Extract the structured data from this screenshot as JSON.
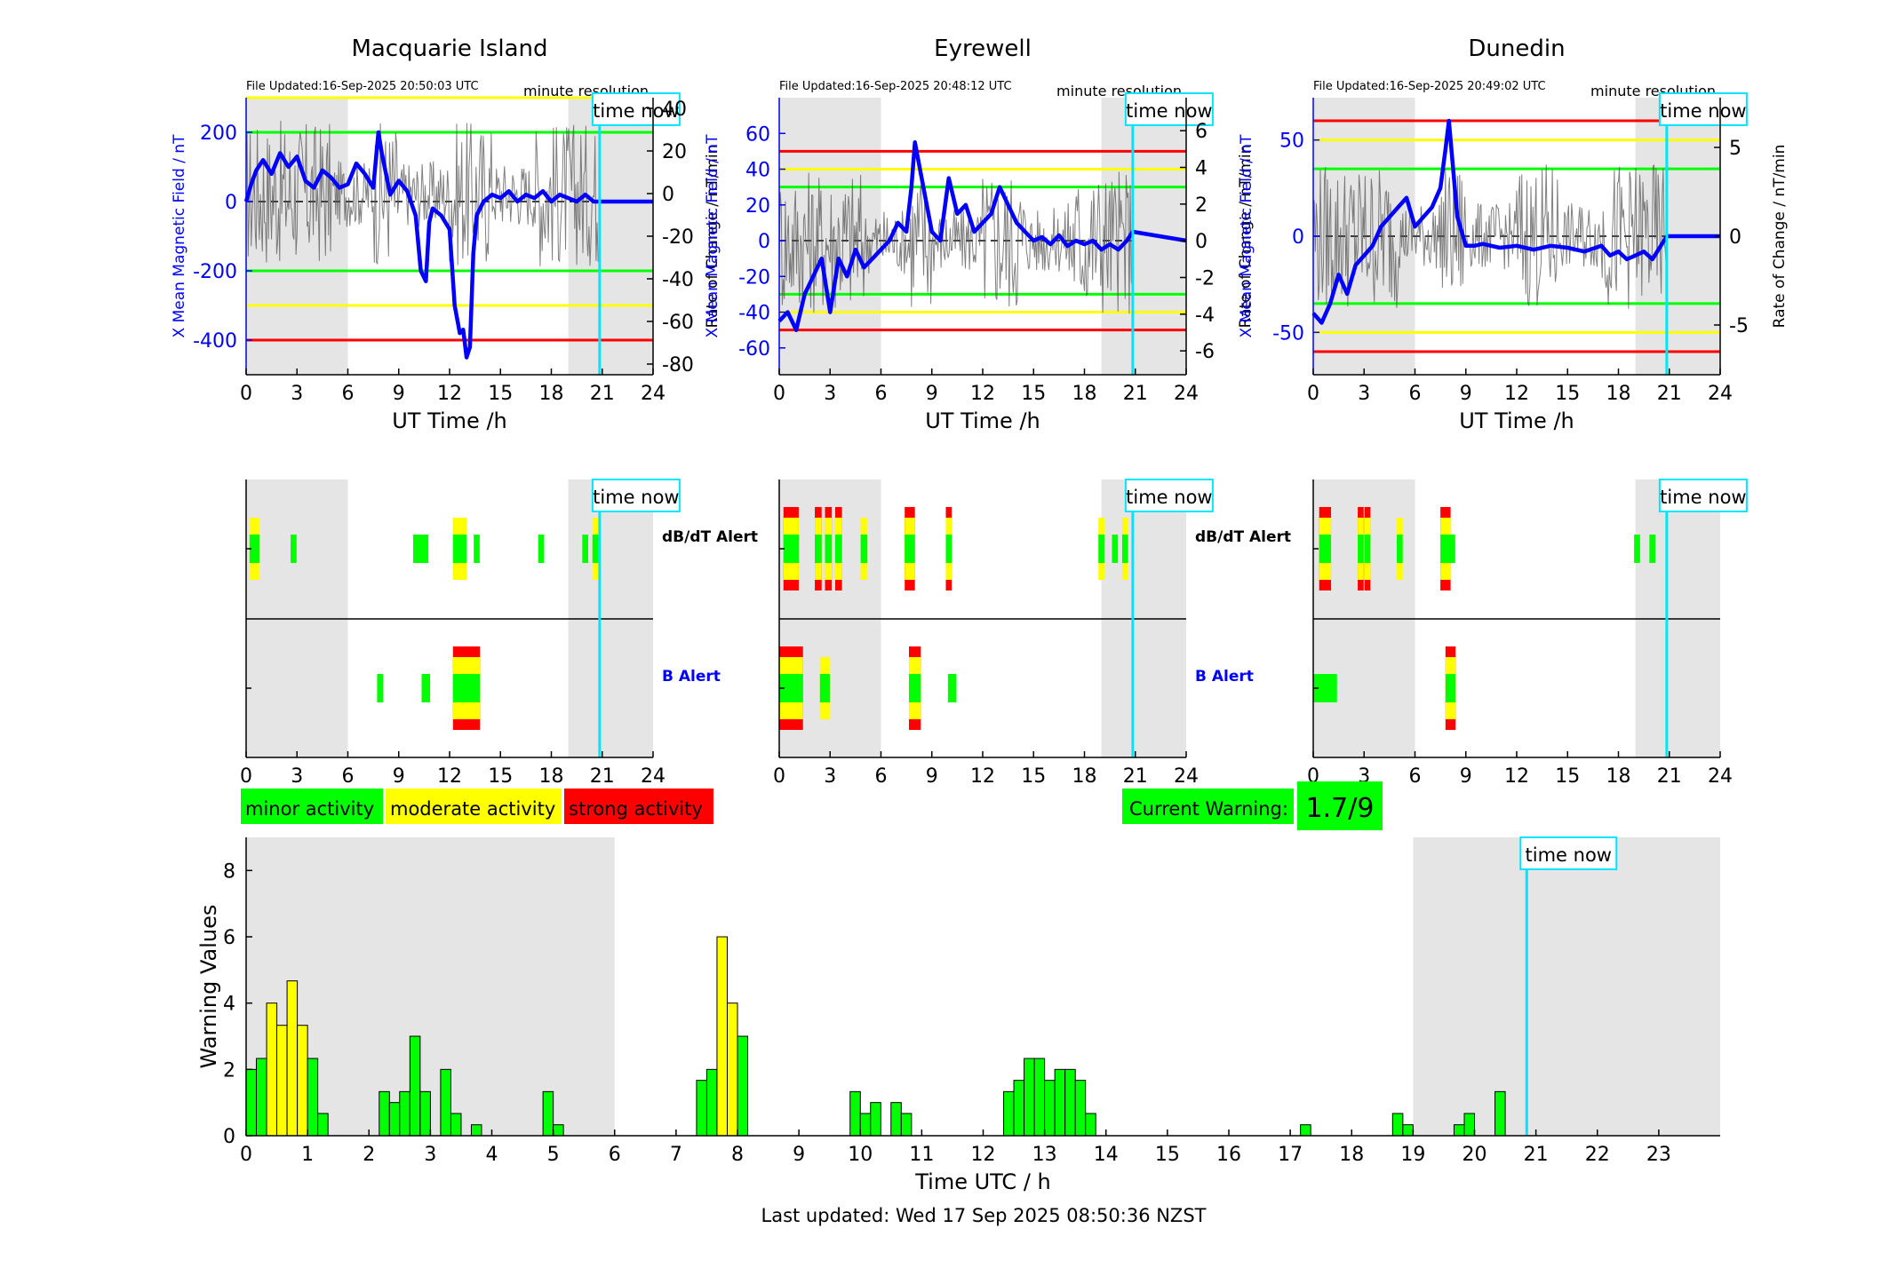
{
  "time_now_label": "time now",
  "minute_resolution_label": "minute resolution",
  "top_axes": {
    "left_ylabel": "X Mean Magnetic Field / nT",
    "right_ylabel": "Rate of Change / nT/min",
    "xlabel": "UT Time /h",
    "xticks": [
      0,
      3,
      6,
      9,
      12,
      15,
      18,
      21,
      24
    ]
  },
  "alert_axes": {
    "dbdt_label": "dB/dT Alert",
    "b_label": "B Alert",
    "xticks": [
      0,
      3,
      6,
      9,
      12,
      15,
      18,
      21,
      24
    ]
  },
  "legend": {
    "minor": "minor activity",
    "moderate": "moderate activity",
    "strong": "strong activity"
  },
  "colors": {
    "minor": "#00ff00",
    "moderate": "#ffff00",
    "strong": "#ff0000",
    "field_line": "#0000ff",
    "time_now": "#00e5ff",
    "shade": "#e5e5e5"
  },
  "current_warning": {
    "label": "Current Warning:",
    "value": "1.7/9"
  },
  "footer": "Last updated: Wed 17 Sep 2025 08:50:36 NZST",
  "chart_data": [
    {
      "type": "line",
      "title": "Macquarie Island",
      "file_updated": "File Updated:16-Sep-2025 20:50:03 UTC",
      "xlim": [
        0,
        24
      ],
      "ylim": [
        -500,
        300
      ],
      "yticks": [
        -400,
        -200,
        0,
        200
      ],
      "y2lim": [
        -85,
        45
      ],
      "y2ticks": [
        -80,
        -60,
        -40,
        -20,
        0,
        20,
        40
      ],
      "shaded_hours": [
        [
          0,
          6
        ],
        [
          19,
          24
        ]
      ],
      "time_now": 20.85,
      "thresholds": {
        "minor": [
          200,
          -200
        ],
        "moderate": [
          300,
          -300
        ],
        "strong": [
          -400
        ]
      },
      "series": [
        {
          "x": [
            0,
            0.3,
            0.6,
            1,
            1.5,
            2,
            2.5,
            3,
            3.5,
            4,
            4.5,
            5,
            5.5,
            6,
            6.5,
            7,
            7.5,
            7.8,
            8,
            8.5,
            9,
            9.5,
            10,
            10.3,
            10.6,
            10.8,
            11,
            11.5,
            12,
            12.3,
            12.6,
            12.8,
            13,
            13.2,
            13.4,
            13.6,
            14,
            14.5,
            15,
            15.5,
            16,
            16.5,
            17,
            17.5,
            18,
            18.5,
            19,
            19.5,
            20,
            20.5,
            20.85,
            24
          ],
          "y": [
            0,
            50,
            90,
            120,
            80,
            140,
            100,
            130,
            60,
            40,
            90,
            70,
            40,
            50,
            110,
            80,
            40,
            200,
            140,
            20,
            60,
            30,
            -40,
            -200,
            -230,
            -60,
            -20,
            -40,
            -80,
            -300,
            -380,
            -370,
            -450,
            -420,
            -150,
            -40,
            0,
            20,
            10,
            30,
            0,
            20,
            10,
            30,
            0,
            20,
            10,
            0,
            20,
            0,
            0,
            0
          ]
        }
      ]
    },
    {
      "type": "line",
      "title": "Eyrewell",
      "file_updated": "File Updated:16-Sep-2025 20:48:12 UTC",
      "xlim": [
        0,
        24
      ],
      "ylim": [
        -75,
        80
      ],
      "yticks": [
        -60,
        -40,
        -20,
        0,
        20,
        40,
        60
      ],
      "y2lim": [
        -7.3,
        7.8
      ],
      "y2ticks": [
        -6,
        -4,
        -2,
        0,
        2,
        4,
        6
      ],
      "shaded_hours": [
        [
          0,
          6
        ],
        [
          19,
          24
        ]
      ],
      "time_now": 20.85,
      "thresholds": {
        "minor": [
          30,
          -30
        ],
        "moderate": [
          40,
          -40
        ],
        "strong": [
          50,
          -50
        ]
      },
      "series": [
        {
          "x": [
            0,
            0.5,
            1,
            1.5,
            2,
            2.5,
            3,
            3.5,
            4,
            4.5,
            5,
            5.5,
            6,
            6.5,
            7,
            7.5,
            7.8,
            8,
            8.5,
            9,
            9.5,
            10,
            10.5,
            11,
            11.5,
            12,
            12.5,
            13,
            13.5,
            14,
            14.5,
            15,
            15.5,
            16,
            16.5,
            17,
            17.5,
            18,
            18.5,
            19,
            19.5,
            20,
            20.5,
            20.85,
            24
          ],
          "y": [
            -45,
            -40,
            -50,
            -30,
            -20,
            -10,
            -40,
            -10,
            -20,
            -5,
            -15,
            -10,
            -5,
            0,
            10,
            5,
            30,
            55,
            30,
            5,
            0,
            35,
            15,
            20,
            5,
            10,
            15,
            30,
            20,
            10,
            5,
            0,
            2,
            -2,
            3,
            -3,
            0,
            -2,
            0,
            -5,
            -2,
            -5,
            0,
            5,
            0
          ]
        }
      ]
    },
    {
      "type": "line",
      "title": "Dunedin",
      "file_updated": "File Updated:16-Sep-2025 20:49:02 UTC",
      "xlim": [
        0,
        24
      ],
      "ylim": [
        -72,
        72
      ],
      "yticks": [
        -50,
        0,
        50
      ],
      "y2lim": [
        -7.8,
        7.8
      ],
      "y2ticks": [
        -5,
        0,
        5
      ],
      "shaded_hours": [
        [
          0,
          6
        ],
        [
          19,
          24
        ]
      ],
      "time_now": 20.85,
      "thresholds": {
        "minor": [
          35,
          -35
        ],
        "moderate": [
          50,
          -50
        ],
        "strong": [
          60,
          -60
        ]
      },
      "series": [
        {
          "x": [
            0,
            0.5,
            1,
            1.5,
            2,
            2.5,
            3,
            3.5,
            4,
            4.5,
            5,
            5.5,
            6,
            6.5,
            7,
            7.5,
            7.8,
            8,
            8.5,
            9,
            9.5,
            10,
            11,
            12,
            13,
            14,
            15,
            16,
            17,
            17.5,
            18,
            18.5,
            19,
            19.5,
            20,
            20.5,
            20.85,
            24
          ],
          "y": [
            -40,
            -45,
            -35,
            -20,
            -30,
            -15,
            -10,
            -5,
            5,
            10,
            15,
            20,
            5,
            10,
            15,
            25,
            45,
            60,
            10,
            -5,
            -5,
            -4,
            -6,
            -5,
            -7,
            -5,
            -6,
            -8,
            -5,
            -10,
            -8,
            -12,
            -10,
            -8,
            -12,
            -5,
            0,
            0
          ]
        }
      ]
    },
    {
      "type": "bar",
      "title": "",
      "xlabel": "Time UTC / h",
      "ylabel": "Warning Values",
      "xlim": [
        0,
        24
      ],
      "ylim": [
        0,
        9
      ],
      "yticks": [
        0,
        2,
        4,
        6,
        8
      ],
      "xticks": [
        0,
        1,
        2,
        3,
        4,
        5,
        6,
        7,
        8,
        9,
        10,
        11,
        12,
        13,
        14,
        15,
        16,
        17,
        18,
        19,
        20,
        21,
        22,
        23
      ],
      "shaded_hours": [
        [
          0,
          6
        ],
        [
          19,
          24
        ]
      ],
      "time_now": 20.85,
      "bar_width_h": 0.1667,
      "bars": [
        {
          "x": 0.083,
          "v": 2.0,
          "c": "minor"
        },
        {
          "x": 0.25,
          "v": 2.33,
          "c": "minor"
        },
        {
          "x": 0.417,
          "v": 4.0,
          "c": "moderate"
        },
        {
          "x": 0.583,
          "v": 3.33,
          "c": "moderate"
        },
        {
          "x": 0.75,
          "v": 4.67,
          "c": "moderate"
        },
        {
          "x": 0.917,
          "v": 3.33,
          "c": "moderate"
        },
        {
          "x": 1.083,
          "v": 2.33,
          "c": "minor"
        },
        {
          "x": 1.25,
          "v": 0.67,
          "c": "minor"
        },
        {
          "x": 2.25,
          "v": 1.33,
          "c": "minor"
        },
        {
          "x": 2.417,
          "v": 1.0,
          "c": "minor"
        },
        {
          "x": 2.583,
          "v": 1.33,
          "c": "minor"
        },
        {
          "x": 2.75,
          "v": 3.0,
          "c": "minor"
        },
        {
          "x": 2.917,
          "v": 1.33,
          "c": "minor"
        },
        {
          "x": 3.25,
          "v": 2.0,
          "c": "minor"
        },
        {
          "x": 3.417,
          "v": 0.67,
          "c": "minor"
        },
        {
          "x": 3.75,
          "v": 0.33,
          "c": "minor"
        },
        {
          "x": 4.917,
          "v": 1.33,
          "c": "minor"
        },
        {
          "x": 5.083,
          "v": 0.33,
          "c": "minor"
        },
        {
          "x": 7.417,
          "v": 1.67,
          "c": "minor"
        },
        {
          "x": 7.583,
          "v": 2.0,
          "c": "minor"
        },
        {
          "x": 7.75,
          "v": 6.0,
          "c": "moderate"
        },
        {
          "x": 7.917,
          "v": 4.0,
          "c": "moderate"
        },
        {
          "x": 8.083,
          "v": 3.0,
          "c": "minor"
        },
        {
          "x": 9.917,
          "v": 1.33,
          "c": "minor"
        },
        {
          "x": 10.083,
          "v": 0.67,
          "c": "minor"
        },
        {
          "x": 10.25,
          "v": 1.0,
          "c": "minor"
        },
        {
          "x": 10.583,
          "v": 1.0,
          "c": "minor"
        },
        {
          "x": 10.75,
          "v": 0.67,
          "c": "minor"
        },
        {
          "x": 12.417,
          "v": 1.33,
          "c": "minor"
        },
        {
          "x": 12.583,
          "v": 1.67,
          "c": "minor"
        },
        {
          "x": 12.75,
          "v": 2.33,
          "c": "minor"
        },
        {
          "x": 12.917,
          "v": 2.33,
          "c": "minor"
        },
        {
          "x": 13.083,
          "v": 1.67,
          "c": "minor"
        },
        {
          "x": 13.25,
          "v": 2.0,
          "c": "minor"
        },
        {
          "x": 13.417,
          "v": 2.0,
          "c": "minor"
        },
        {
          "x": 13.583,
          "v": 1.67,
          "c": "minor"
        },
        {
          "x": 13.75,
          "v": 0.67,
          "c": "minor"
        },
        {
          "x": 17.25,
          "v": 0.33,
          "c": "minor"
        },
        {
          "x": 18.75,
          "v": 0.67,
          "c": "minor"
        },
        {
          "x": 18.917,
          "v": 0.33,
          "c": "minor"
        },
        {
          "x": 19.75,
          "v": 0.33,
          "c": "minor"
        },
        {
          "x": 19.917,
          "v": 0.67,
          "c": "minor"
        },
        {
          "x": 20.417,
          "v": 1.33,
          "c": "minor"
        }
      ]
    }
  ],
  "alerts": [
    {
      "dbdt": [
        {
          "x": 0.5,
          "w": 0.6,
          "levels": [
            "moderate",
            "minor"
          ]
        },
        {
          "x": 2.8,
          "w": 0.35,
          "levels": [
            "minor"
          ]
        },
        {
          "x": 10.3,
          "w": 0.9,
          "levels": [
            "minor"
          ]
        },
        {
          "x": 12.6,
          "w": 0.8,
          "levels": [
            "moderate",
            "minor"
          ]
        },
        {
          "x": 13.6,
          "w": 0.35,
          "levels": [
            "minor"
          ]
        },
        {
          "x": 17.4,
          "w": 0.35,
          "levels": [
            "minor"
          ]
        },
        {
          "x": 20.0,
          "w": 0.35,
          "levels": [
            "minor"
          ]
        },
        {
          "x": 20.6,
          "w": 0.35,
          "levels": [
            "moderate",
            "minor"
          ]
        }
      ],
      "b": [
        {
          "x": 7.9,
          "w": 0.35,
          "levels": [
            "minor"
          ]
        },
        {
          "x": 10.6,
          "w": 0.5,
          "levels": [
            "minor"
          ]
        },
        {
          "x": 13.0,
          "w": 1.6,
          "levels": [
            "strong",
            "moderate",
            "minor"
          ]
        }
      ]
    },
    {
      "dbdt": [
        {
          "x": 0.7,
          "w": 0.9,
          "levels": [
            "strong",
            "moderate",
            "minor"
          ]
        },
        {
          "x": 2.3,
          "w": 0.4,
          "levels": [
            "strong",
            "moderate",
            "minor"
          ]
        },
        {
          "x": 2.9,
          "w": 0.4,
          "levels": [
            "strong",
            "moderate",
            "minor"
          ]
        },
        {
          "x": 3.5,
          "w": 0.4,
          "levels": [
            "strong",
            "moderate",
            "minor"
          ]
        },
        {
          "x": 5.0,
          "w": 0.4,
          "levels": [
            "moderate",
            "minor"
          ]
        },
        {
          "x": 7.7,
          "w": 0.6,
          "levels": [
            "strong",
            "moderate",
            "minor"
          ]
        },
        {
          "x": 10.0,
          "w": 0.35,
          "levels": [
            "strong",
            "moderate",
            "minor"
          ]
        },
        {
          "x": 19.0,
          "w": 0.35,
          "levels": [
            "moderate",
            "minor"
          ]
        },
        {
          "x": 19.8,
          "w": 0.35,
          "levels": [
            "minor"
          ]
        },
        {
          "x": 20.4,
          "w": 0.35,
          "levels": [
            "moderate",
            "minor"
          ]
        }
      ],
      "b": [
        {
          "x": 0.7,
          "w": 1.4,
          "levels": [
            "strong",
            "moderate",
            "minor"
          ]
        },
        {
          "x": 2.7,
          "w": 0.6,
          "levels": [
            "moderate",
            "minor"
          ]
        },
        {
          "x": 8.0,
          "w": 0.7,
          "levels": [
            "strong",
            "moderate",
            "minor"
          ]
        },
        {
          "x": 10.2,
          "w": 0.5,
          "levels": [
            "minor"
          ]
        }
      ]
    },
    {
      "dbdt": [
        {
          "x": 0.7,
          "w": 0.7,
          "levels": [
            "strong",
            "moderate",
            "minor"
          ]
        },
        {
          "x": 2.8,
          "w": 0.35,
          "levels": [
            "strong",
            "moderate",
            "minor"
          ]
        },
        {
          "x": 3.2,
          "w": 0.35,
          "levels": [
            "strong",
            "moderate",
            "minor"
          ]
        },
        {
          "x": 5.1,
          "w": 0.35,
          "levels": [
            "moderate",
            "minor"
          ]
        },
        {
          "x": 7.8,
          "w": 0.6,
          "levels": [
            "strong",
            "moderate",
            "minor"
          ]
        },
        {
          "x": 8.2,
          "w": 0.35,
          "levels": [
            "minor"
          ]
        },
        {
          "x": 19.1,
          "w": 0.35,
          "levels": [
            "minor"
          ]
        },
        {
          "x": 20.0,
          "w": 0.35,
          "levels": [
            "minor"
          ]
        }
      ],
      "b": [
        {
          "x": 0.7,
          "w": 1.4,
          "levels": [
            "minor"
          ]
        },
        {
          "x": 8.1,
          "w": 0.6,
          "levels": [
            "strong",
            "moderate",
            "minor"
          ]
        }
      ]
    }
  ]
}
